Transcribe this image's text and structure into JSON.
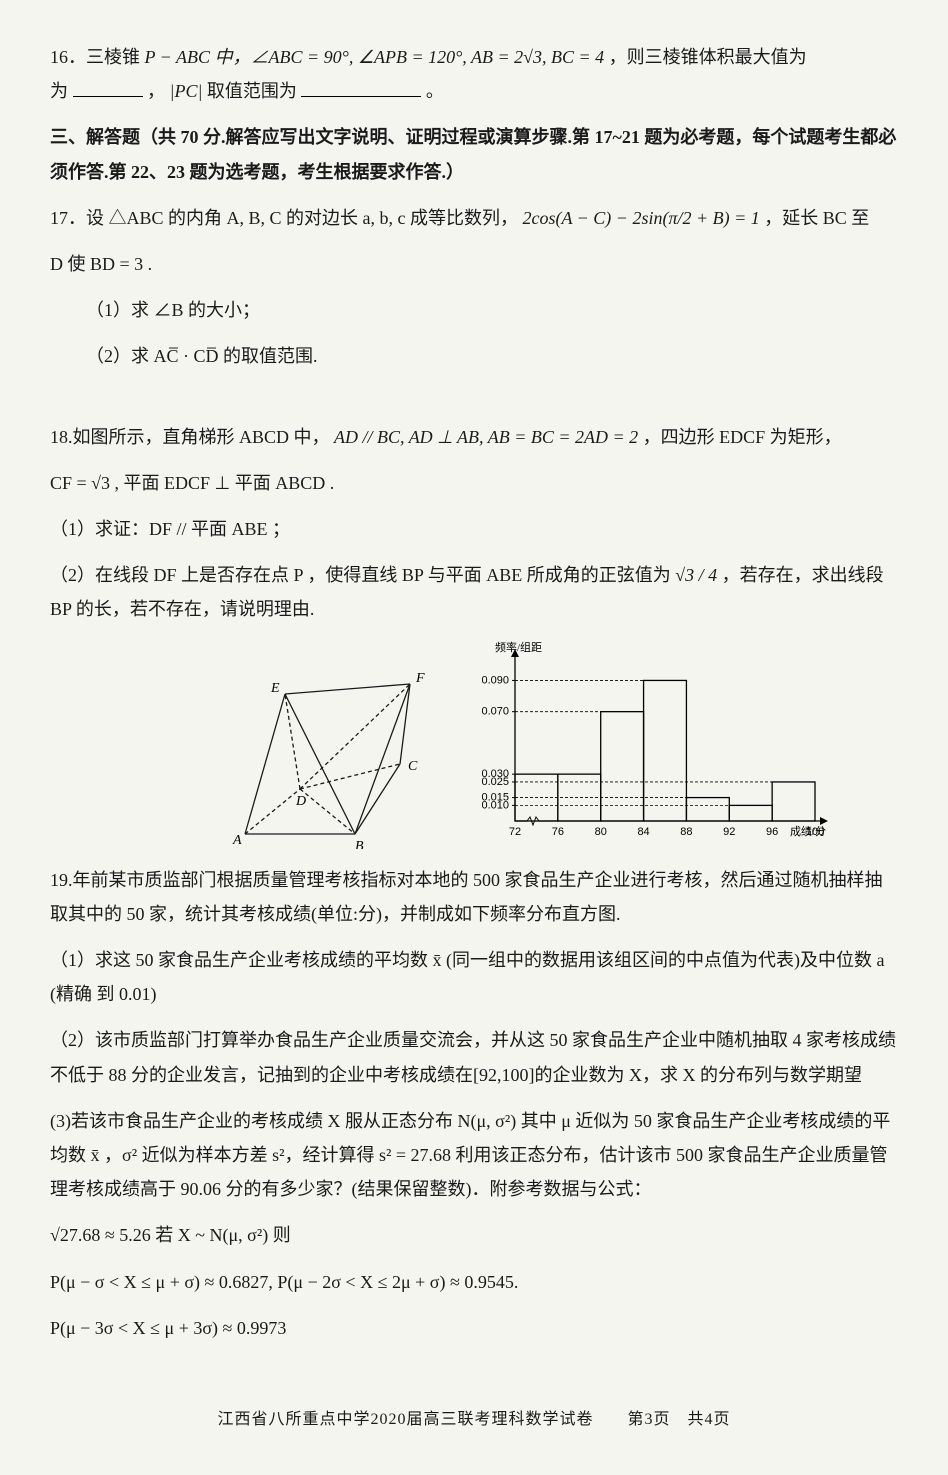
{
  "q16": {
    "start": "16．三棱锥 ",
    "expr": "P − ABC 中，∠ABC = 90°, ∠APB = 120°, AB = 2√3, BC = 4",
    "tail1": "，则三棱锥体积最大值为",
    "mid": "，",
    "pc": "|PC|",
    "tail2": " 取值范围为",
    "period": "。"
  },
  "sec3": {
    "head": "三、解答题（共 70 分.解答应写出文字说明、证明过程或演算步骤.第 17~21 题为必考题，每个试题考生都必须作答.第 22、23 题为选考题，考生根据要求作答.）"
  },
  "q17": {
    "line1a": "17．设 △ABC 的内角 A, B, C 的对边长 a, b, c 成等比数列，",
    "expr": "2cos(A − C) − 2sin(π/2 + B) = 1",
    "line1b": "，延长 BC 至",
    "line2": "D 使 BD = 3 .",
    "p1": "（1）求 ∠B 的大小；",
    "p2": "（2）求 AC̅ · CD̅ 的取值范围."
  },
  "q18": {
    "l1a": "18.如图所示，直角梯形 ABCD 中，",
    "l1expr": "AD // BC, AD ⊥ AB, AB = BC = 2AD = 2",
    "l1b": "，四边形 EDCF 为矩形，",
    "l2": "CF = √3 , 平面 EDCF ⊥ 平面 ABCD .",
    "p1": "（1）求证：DF // 平面 ABE ；",
    "p2a": "（2）在线段 DF 上是否存在点 P ，使得直线 BP 与平面 ABE 所成角的正弦值为 ",
    "p2frac": "√3 / 4",
    "p2b": "，若存在，求出线段 BP 的长，若不存在，请说明理由."
  },
  "geomFig": {
    "labels": {
      "A": "A",
      "B": "B",
      "C": "C",
      "D": "D",
      "E": "E",
      "F": "F"
    },
    "stroke": "#1a1a1a"
  },
  "hist": {
    "ylabel": "频率/组距",
    "xlabel": "成绩/分",
    "yticks": [
      0.01,
      0.015,
      0.025,
      0.03,
      0.07,
      0.09
    ],
    "xticks": [
      72,
      76,
      80,
      84,
      88,
      92,
      96,
      100
    ],
    "bars": [
      {
        "x0": 72,
        "x1": 76,
        "h": 0.03
      },
      {
        "x0": 76,
        "x1": 80,
        "h": 0.03
      },
      {
        "x0": 80,
        "x1": 84,
        "h": 0.07
      },
      {
        "x0": 84,
        "x1": 88,
        "h": 0.09
      },
      {
        "x0": 88,
        "x1": 92,
        "h": 0.015
      },
      {
        "x0": 92,
        "x1": 96,
        "h": 0.01
      },
      {
        "x0": 96,
        "x1": 100,
        "h": 0.025
      }
    ],
    "ylim": [
      0,
      0.105
    ],
    "axisColor": "#000",
    "barStroke": "#000",
    "barFill": "none",
    "font": 11
  },
  "q19": {
    "l1": "19.年前某市质监部门根据质量管理考核指标对本地的 500 家食品生产企业进行考核，然后通过随机抽样抽取其中的 50 家，统计其考核成绩(单位:分)，并制成如下频率分布直方图.",
    "p1": "（1）求这 50 家食品生产企业考核成绩的平均数 x̄ (同一组中的数据用该组区间的中点值为代表)及中位数 a (精确 到 0.01)",
    "p2": "（2）该市质监部门打算举办食品生产企业质量交流会，并从这 50 家食品生产企业中随机抽取 4 家考核成绩不低于 88 分的企业发言，记抽到的企业中考核成绩在[92,100]的企业数为 X，求 X 的分布列与数学期望",
    "p3a": "(3)若该市食品生产企业的考核成绩 X 服从正态分布 N(μ, σ²) 其中 μ 近似为 50 家食品生产企业考核成绩的平均数 x̄ ，σ² 近似为样本方差 s²，经计算得 s² = 27.68 利用该正态分布，估计该市 500 家食品生产企业质量管理考核成绩高于 90.06 分的有多少家？(结果保留整数)．附参考数据与公式：",
    "f1": "√27.68 ≈ 5.26 若 X ~ N(μ, σ²) 则",
    "f2": "P(μ − σ < X ≤ μ + σ) ≈ 0.6827, P(μ − 2σ < X ≤ 2μ + σ) ≈ 0.9545.",
    "f3": "P(μ − 3σ < X ≤ μ + 3σ) ≈ 0.9973"
  },
  "footer": {
    "text": "江西省八所重点中学2020届高三联考理科数学试卷　　第3页　共4页"
  }
}
